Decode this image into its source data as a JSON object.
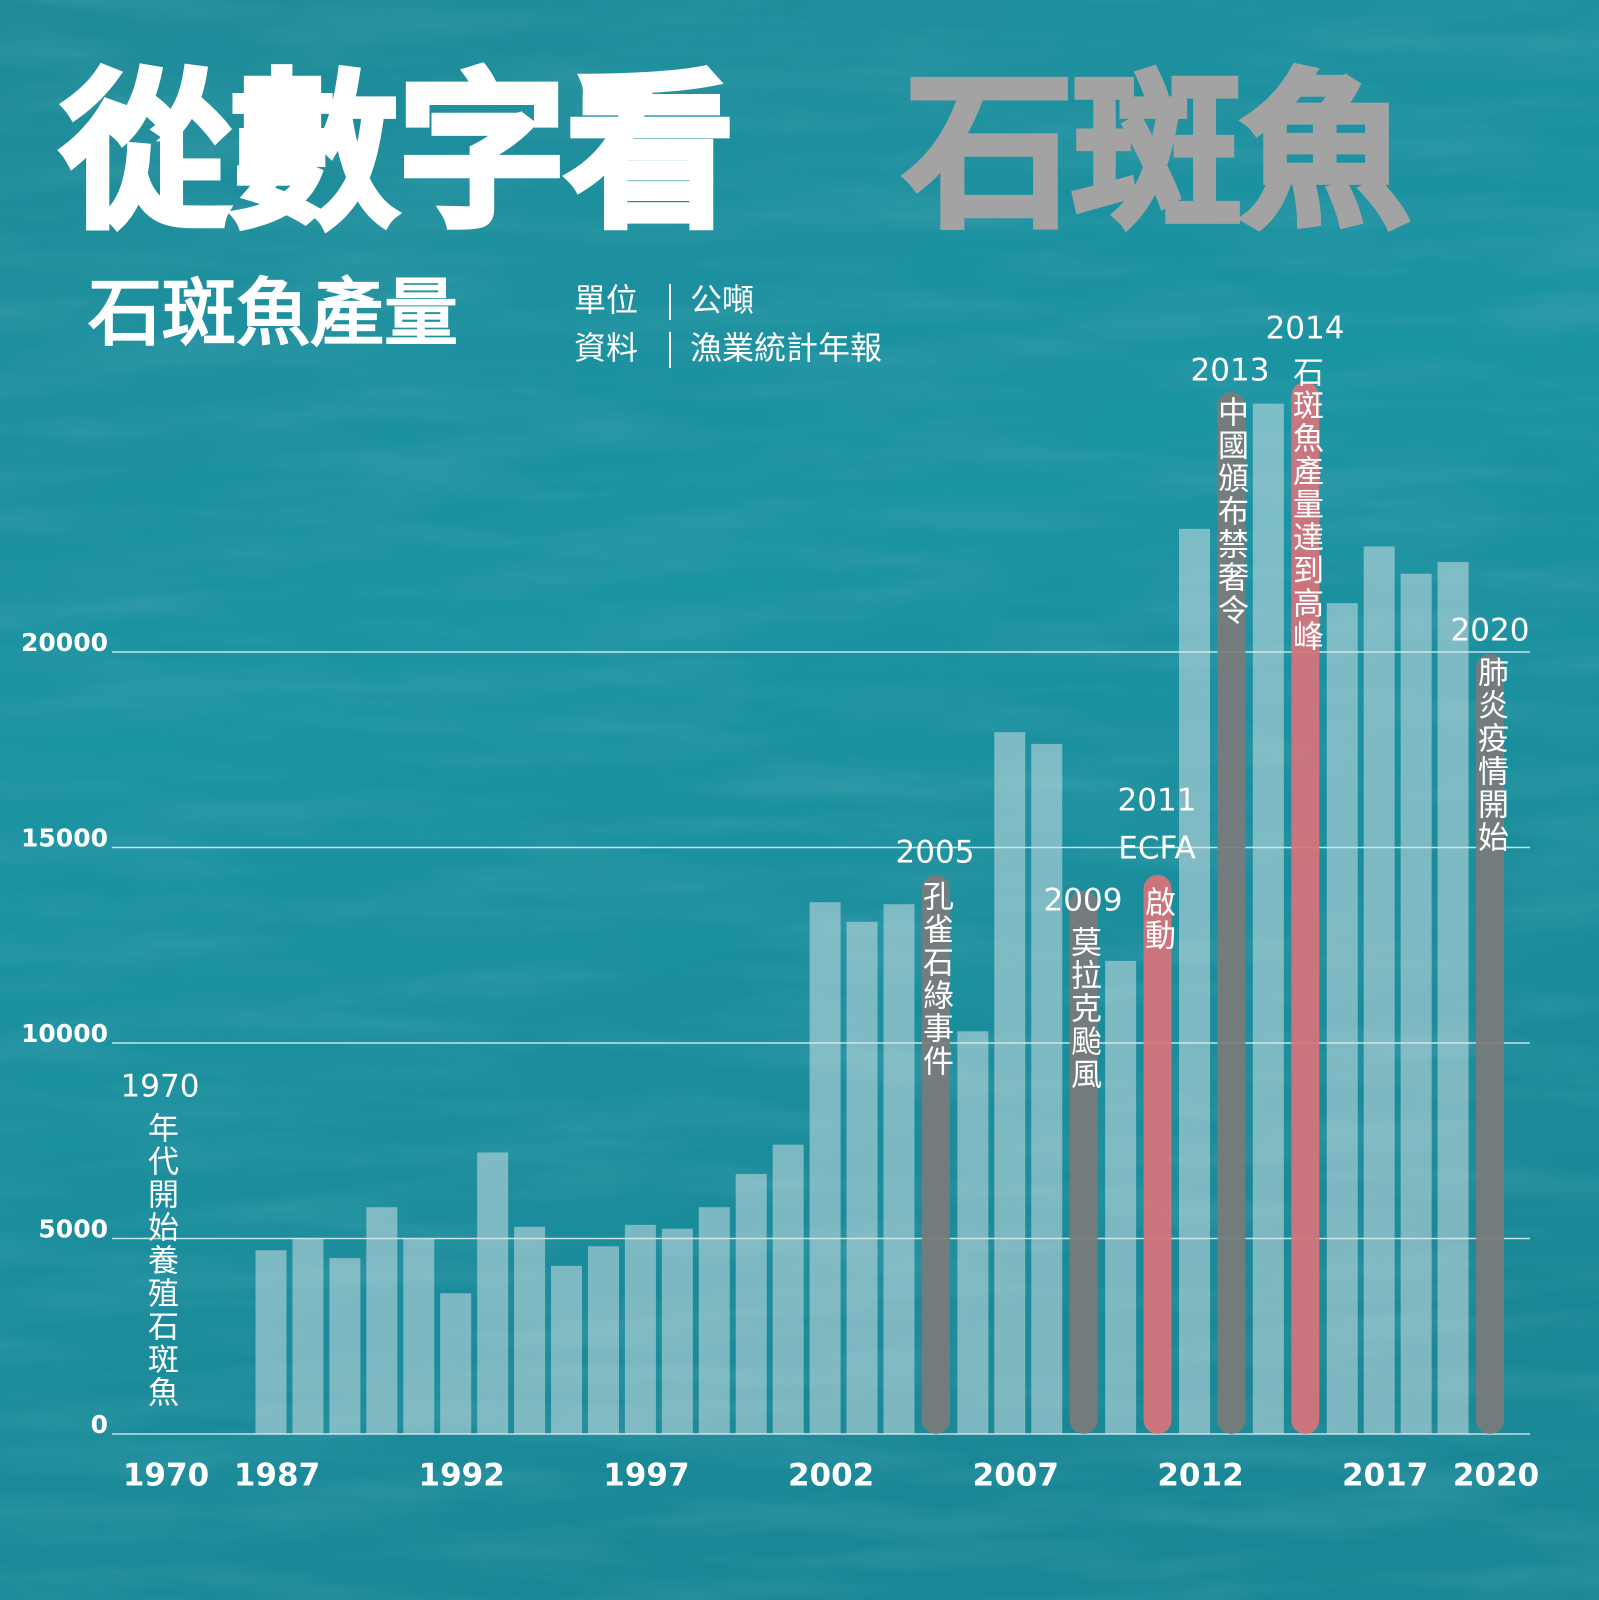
{
  "chart_data": {
    "type": "bar",
    "title": "從數字看",
    "title_highlight": "石斑魚",
    "subtitle": "石斑魚產量",
    "unit_label": "單位",
    "unit": "公噸",
    "source_label": "資料",
    "source": "漁業統計年報",
    "categories": [
      "1970",
      "1987",
      null,
      null,
      null,
      null,
      "1992",
      null,
      null,
      null,
      null,
      "1997",
      null,
      null,
      null,
      null,
      "2002",
      null,
      null,
      null,
      null,
      "2007",
      null,
      null,
      null,
      null,
      "2012",
      null,
      null,
      null,
      null,
      "2017",
      null,
      null,
      "2020"
    ],
    "values": [
      null,
      4700,
      5000,
      4500,
      5800,
      5000,
      3600,
      7200,
      5300,
      4300,
      4800,
      5350,
      5250,
      5800,
      6650,
      7400,
      13600,
      13100,
      13550,
      14300,
      10300,
      17950,
      17650,
      13900,
      12100,
      14300,
      23150,
      26650,
      26350,
      26900,
      21250,
      22700,
      22000,
      22300,
      19950
    ],
    "colors": [
      null,
      "#dde6ea",
      "#dde6ea",
      "#dde6ea",
      "#dde6ea",
      "#dde6ea",
      "#dde6ea",
      "#dde6ea",
      "#dde6ea",
      "#dde6ea",
      "#dde6ea",
      "#dde6ea",
      "#dde6ea",
      "#dde6ea",
      "#dde6ea",
      "#dde6ea",
      "#dde6ea",
      "#dde6ea",
      "#dde6ea",
      "#7b7b7b",
      "#dde6ea",
      "#dde6ea",
      "#dde6ea",
      "#7b7b7b",
      "#dde6ea",
      "#d9737b",
      "#dde6ea",
      "#7b7b7b",
      "#dde6ea",
      "#d9737b",
      "#dde6ea",
      "#dde6ea",
      "#dde6ea",
      "#dde6ea",
      "#7b7b7b"
    ],
    "ylim": [
      0,
      30000
    ],
    "yticks": [
      0,
      5000,
      10000,
      15000,
      20000
    ],
    "grid": true,
    "annotations": [
      {
        "label": "1970",
        "text": "年代開始養殖石斑魚"
      },
      {
        "label": "2005",
        "text": "孔雀石綠事件"
      },
      {
        "label": "2009",
        "text": "莫拉克颱風"
      },
      {
        "label": "2011",
        "sub": "ECFA",
        "text": "啟動"
      },
      {
        "label": "2013",
        "text": "中國頒布禁奢令"
      },
      {
        "label": "2014",
        "text": "石斑魚產量達到高峰"
      },
      {
        "label": "2020",
        "text": "肺炎疫情開始"
      }
    ]
  }
}
